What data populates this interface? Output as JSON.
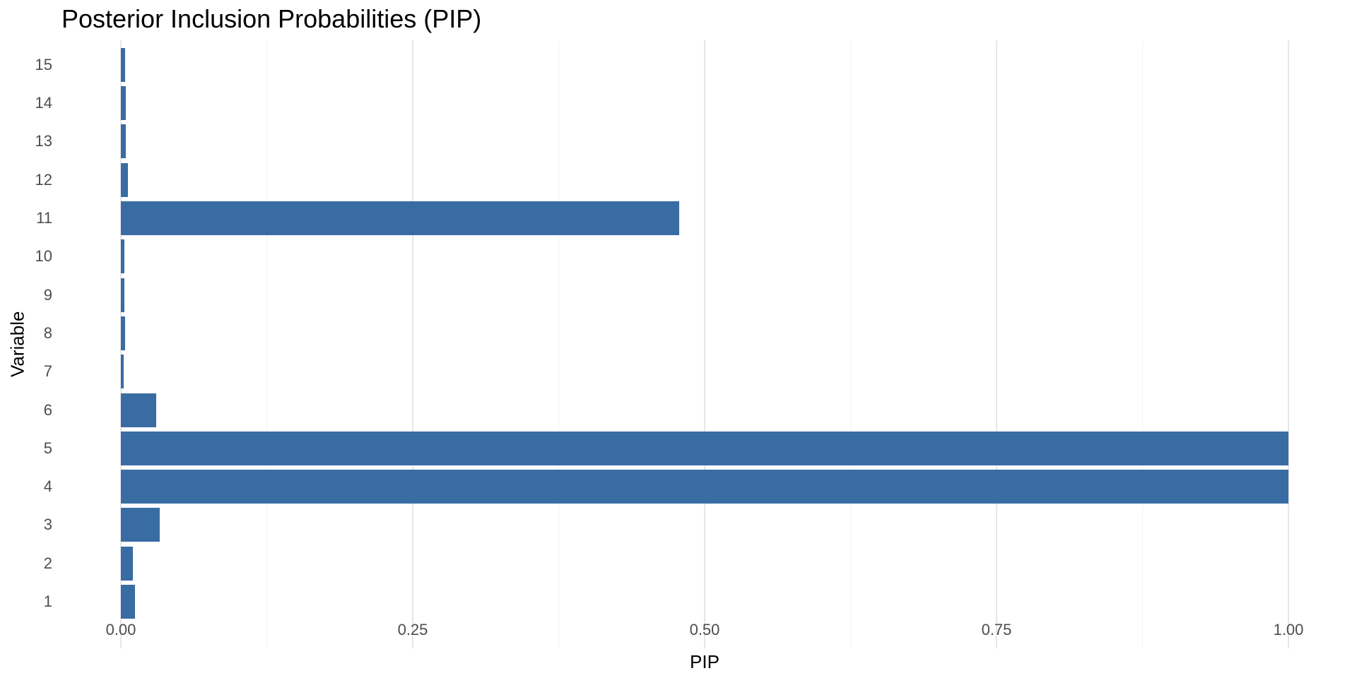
{
  "title": "Posterior Inclusion Probabilities (PIP)",
  "colors": {
    "bar": "#3A6CA4",
    "grid_major": "#E7E7E7",
    "grid_minor": "#F2F2F2",
    "tick_text": "#4D4D4D",
    "title_text": "#000000",
    "background": "#FFFFFF"
  },
  "chart_data": {
    "type": "bar",
    "orientation": "horizontal",
    "title": "Posterior Inclusion Probabilities (PIP)",
    "xlabel": "PIP",
    "ylabel": "Variable",
    "categories": [
      "1",
      "2",
      "3",
      "4",
      "5",
      "6",
      "7",
      "8",
      "9",
      "10",
      "11",
      "12",
      "13",
      "14",
      "15"
    ],
    "values": [
      0.012,
      0.01,
      0.033,
      1.0,
      1.0,
      0.03,
      0.0025,
      0.0035,
      0.003,
      0.003,
      0.478,
      0.006,
      0.0045,
      0.004,
      0.0035
    ],
    "xlim": [
      0,
      1
    ],
    "x_major_ticks": [
      0,
      0.25,
      0.5,
      0.75,
      1.0
    ],
    "x_tick_labels": [
      "0.00",
      "0.25",
      "0.50",
      "0.75",
      "1.00"
    ],
    "x_minor_ticks": [
      0.125,
      0.375,
      0.625,
      0.875
    ],
    "grid": "vertical major + minor, no axis lines, white background",
    "legend": "none",
    "bar_color": "#3A6CA4"
  }
}
